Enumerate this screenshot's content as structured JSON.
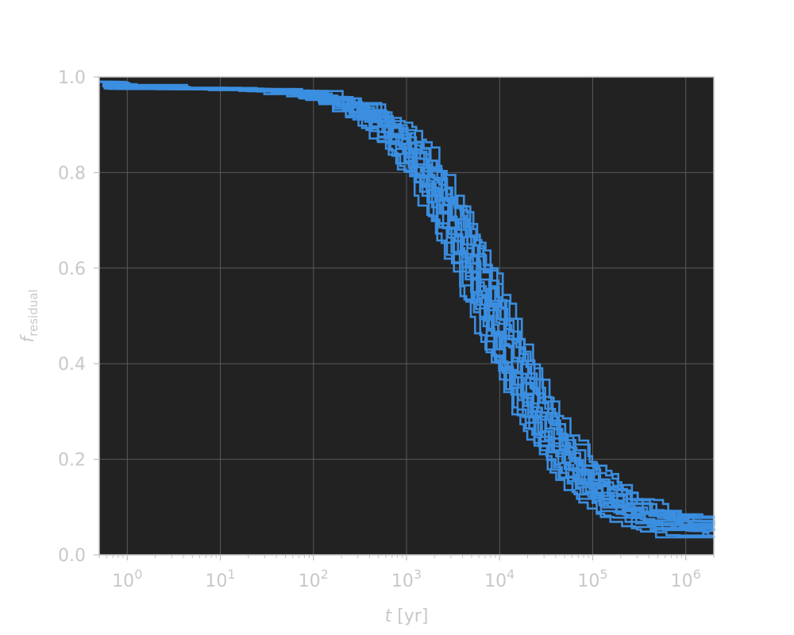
{
  "chart_data": {
    "type": "line",
    "title": "",
    "xlabel": {
      "symbol": "t",
      "unit": " [yr]"
    },
    "ylabel": {
      "symbol": "f",
      "subscript": "residual"
    },
    "xscale": "log",
    "xlim": [
      0.5,
      2000000
    ],
    "ylim": [
      0.0,
      1.0
    ],
    "grid": true,
    "legend": "none",
    "xticks": [
      {
        "value": 1,
        "base": "10",
        "exp": "0"
      },
      {
        "value": 10,
        "base": "10",
        "exp": "1"
      },
      {
        "value": 100,
        "base": "10",
        "exp": "2"
      },
      {
        "value": 1000,
        "base": "10",
        "exp": "3"
      },
      {
        "value": 10000,
        "base": "10",
        "exp": "4"
      },
      {
        "value": 100000,
        "base": "10",
        "exp": "5"
      },
      {
        "value": 1000000,
        "base": "10",
        "exp": "6"
      }
    ],
    "yticks": [
      {
        "value": 0.0,
        "label": "0.0"
      },
      {
        "value": 0.2,
        "label": "0.2"
      },
      {
        "value": 0.4,
        "label": "0.4"
      },
      {
        "value": 0.6,
        "label": "0.6"
      },
      {
        "value": 0.8,
        "label": "0.8"
      },
      {
        "value": 1.0,
        "label": "1.0"
      }
    ],
    "colors": {
      "series": "#3b8ee0",
      "plot_bg": "#222222",
      "axis": "#bfbfbf",
      "grid": "#5a5a5a",
      "text": "#c8c8c8"
    },
    "series_profile": {
      "description": "normalized cumulative residual-fraction curves, log-time in data units",
      "series": [
        {
          "start": 0.99,
          "t_half": 5200,
          "floor": 0.05
        },
        {
          "start": 0.99,
          "t_half": 9000,
          "floor": 0.07
        },
        {
          "start": 0.99,
          "t_half": 6500,
          "floor": 0.06
        },
        {
          "start": 0.99,
          "t_half": 11000,
          "floor": 0.07
        },
        {
          "start": 0.99,
          "t_half": 4500,
          "floor": 0.04
        },
        {
          "start": 0.99,
          "t_half": 7800,
          "floor": 0.06
        },
        {
          "start": 0.99,
          "t_half": 5800,
          "floor": 0.03
        },
        {
          "start": 0.99,
          "t_half": 8500,
          "floor": 0.05
        },
        {
          "start": 0.99,
          "t_half": 6000,
          "floor": 0.07
        },
        {
          "start": 0.99,
          "t_half": 10000,
          "floor": 0.06
        },
        {
          "start": 0.99,
          "t_half": 7000,
          "floor": 0.04
        },
        {
          "start": 0.99,
          "t_half": 12000,
          "floor": 0.07
        },
        {
          "start": 0.99,
          "t_half": 4800,
          "floor": 0.05
        },
        {
          "start": 0.99,
          "t_half": 9500,
          "floor": 0.06
        },
        {
          "start": 0.99,
          "t_half": 6800,
          "floor": 0.05
        },
        {
          "start": 0.99,
          "t_half": 8000,
          "floor": 0.07
        },
        {
          "start": 0.99,
          "t_half": 5500,
          "floor": 0.06
        },
        {
          "start": 0.99,
          "t_half": 10500,
          "floor": 0.04
        },
        {
          "start": 0.99,
          "t_half": 7300,
          "floor": 0.06
        },
        {
          "start": 0.99,
          "t_half": 6200,
          "floor": 0.05
        }
      ]
    }
  }
}
